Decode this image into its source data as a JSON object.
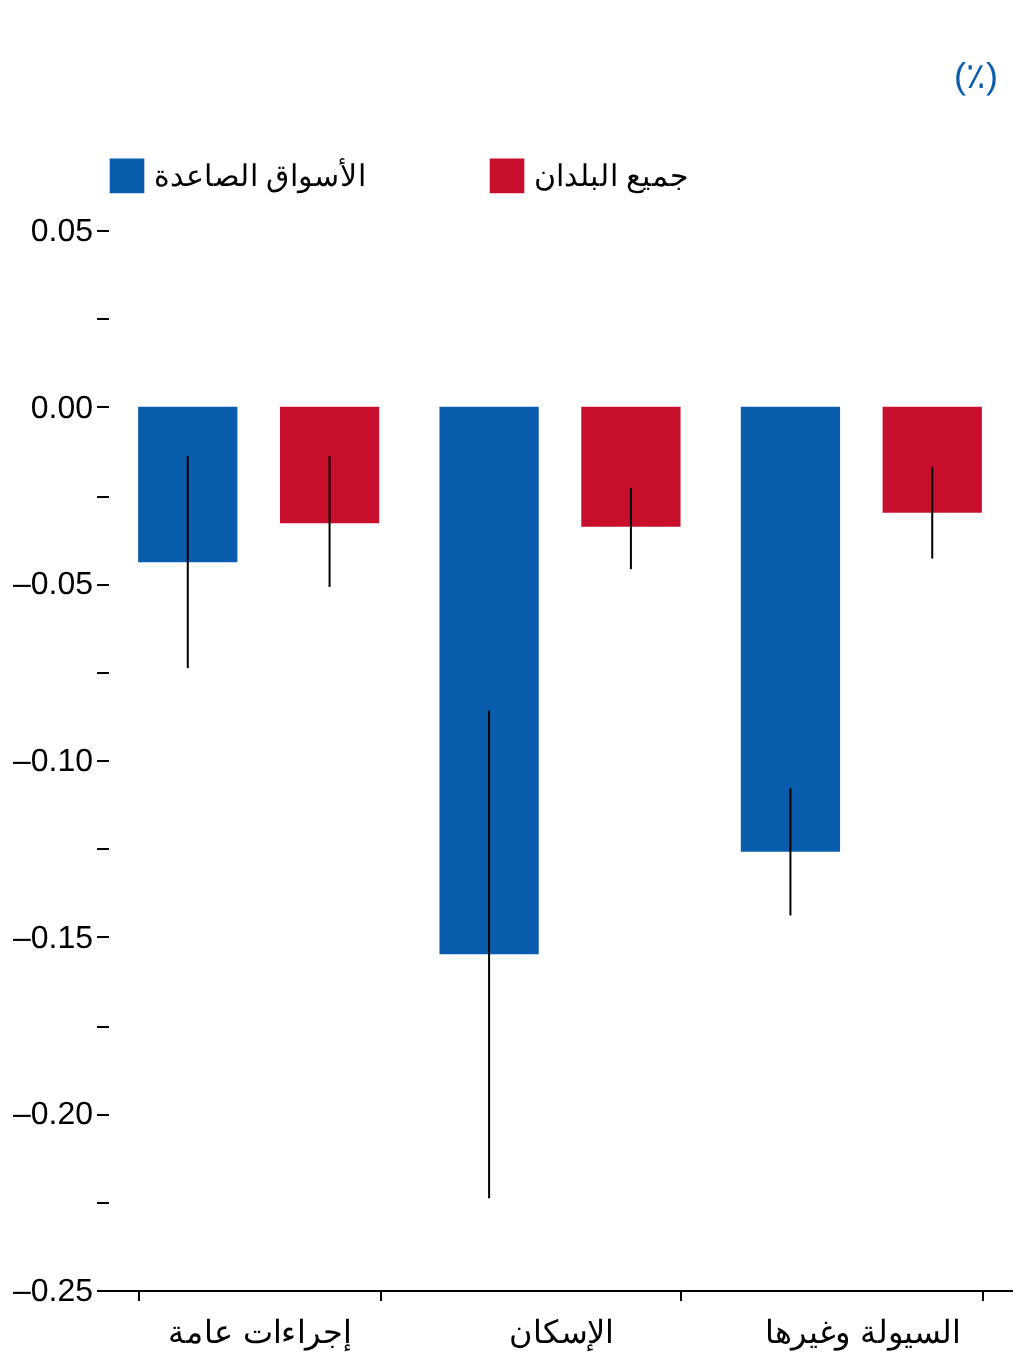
{
  "chart_data": {
    "type": "bar",
    "categories": [
      "إجراءات عامة",
      "الإسكان",
      "السيولة وغيرها"
    ],
    "series": [
      {
        "name": "الأسواق الصاعدة",
        "color": "#0a5cad",
        "values": [
          -0.044,
          -0.155,
          -0.126
        ],
        "errors": [
          [
            -0.074,
            -0.014
          ],
          [
            -0.224,
            -0.086
          ],
          [
            -0.144,
            -0.108
          ]
        ]
      },
      {
        "name": "جميع البلدان",
        "color": "#c8102e",
        "values": [
          -0.033,
          -0.034,
          -0.03
        ],
        "errors": [
          [
            -0.051,
            -0.014
          ],
          [
            -0.046,
            -0.023
          ],
          [
            -0.043,
            -0.017
          ]
        ]
      }
    ],
    "ylim": [
      -0.25,
      0.05
    ],
    "yticks": [
      0.05,
      {
        "value": 0.025,
        "label": null
      },
      "0.00",
      {
        "value": -0.025,
        "label": null
      },
      {
        "value": -0.05,
        "label": "–0.05"
      },
      {
        "value": -0.075,
        "label": null
      },
      {
        "value": -0.1,
        "label": "–0.10"
      },
      {
        "value": -0.125,
        "label": null
      },
      {
        "value": -0.15,
        "label": "–0.15"
      },
      {
        "value": -0.175,
        "label": null
      },
      {
        "value": -0.2,
        "label": "–0.20"
      },
      {
        "value": -0.225,
        "label": null
      },
      {
        "value": -0.25,
        "label": "–0.25"
      }
    ],
    "legend": "top",
    "grid": false,
    "annotations": [
      "(٪)"
    ]
  }
}
